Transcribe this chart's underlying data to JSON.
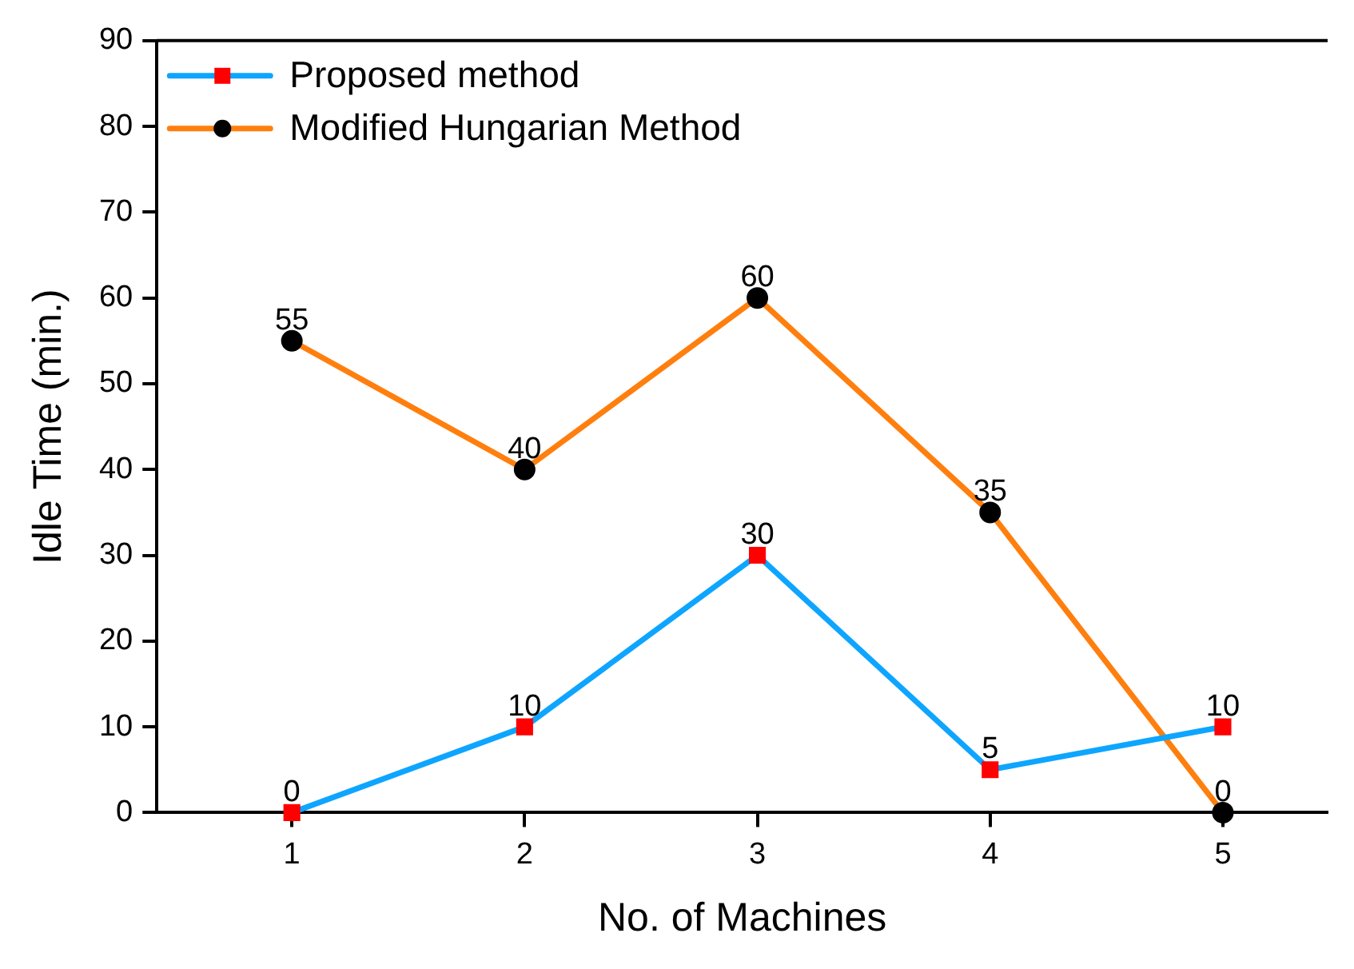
{
  "chart_data": {
    "type": "line",
    "xlabel": "No. of Machines",
    "ylabel": "Idle Time (min.)",
    "x": [
      1,
      2,
      3,
      4,
      5
    ],
    "xlim": [
      0.42,
      5.45
    ],
    "xticks": [
      1,
      2,
      3,
      4,
      5
    ],
    "ylim": [
      0,
      90
    ],
    "yticks": [
      0,
      10,
      20,
      30,
      40,
      50,
      60,
      70,
      80,
      90
    ],
    "series": [
      {
        "name": "Proposed method",
        "color": "#0ea5ff",
        "colors": [
          "#ff0000",
          "#ff0000",
          "#ff0000",
          "#ff0000",
          "#ff0000"
        ],
        "marker": "square",
        "values": [
          0,
          10,
          30,
          5,
          10
        ]
      },
      {
        "name": "Modified Hungarian Method",
        "color": "#ff7f0e",
        "colors": [
          "#000000",
          "#000000",
          "#000000",
          "#000000",
          "#000000"
        ],
        "marker": "circle",
        "values": [
          55,
          40,
          60,
          35,
          0
        ]
      }
    ],
    "data_labels": true,
    "grid": false,
    "legend": "top left",
    "line_style": "solid"
  }
}
